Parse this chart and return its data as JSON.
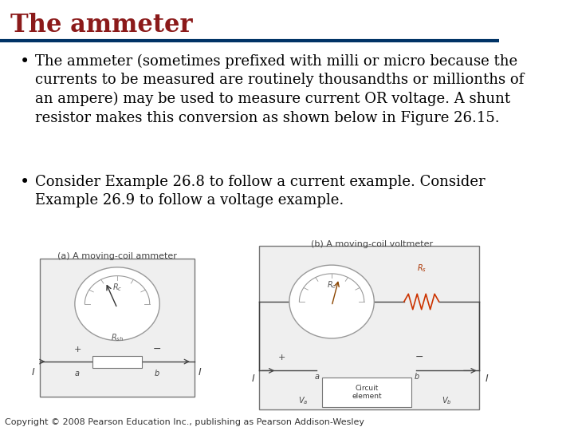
{
  "title": "The ammeter",
  "title_color": "#8B1A1A",
  "title_fontsize": 22,
  "title_bold": true,
  "separator_color": "#003366",
  "separator_linewidth": 3,
  "bg_color": "#FFFFFF",
  "bullet1": "The ammeter (sometimes prefixed with milli or micro because the\ncurrents to be measured are routinely thousandths or millionths of\nan ampere) may be used to measure current OR voltage. A shunt\nresistor makes this conversion as shown below in Figure 26.15.",
  "bullet2": "Consider Example 26.8 to follow a current example. Consider\nExample 26.9 to follow a voltage example.",
  "bullet_color": "#000000",
  "bullet_fontsize": 13,
  "bullet_font": "serif",
  "caption_a": "(a) A moving-coil ammeter",
  "caption_b": "(b) A moving-coil voltmeter",
  "caption_fontsize": 8,
  "footer": "Copyright © 2008 Pearson Education Inc., publishing as Pearson Addison-Wesley",
  "footer_fontsize": 8,
  "footer_color": "#333333"
}
